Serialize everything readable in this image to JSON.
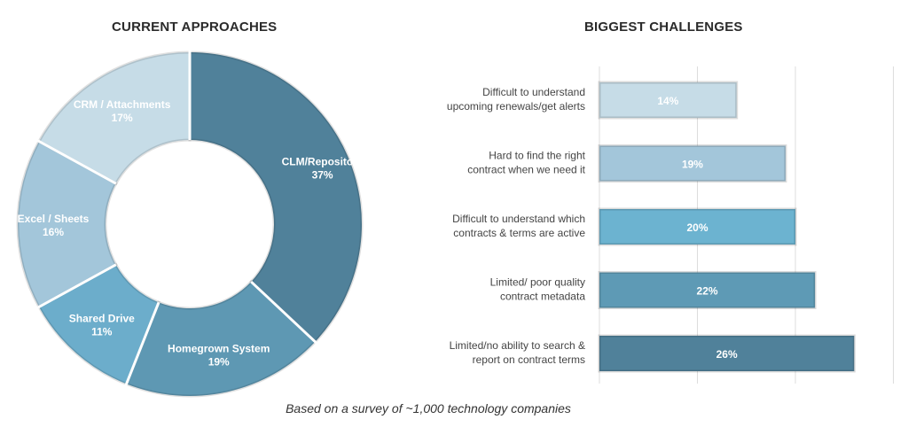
{
  "footnote": "Based on a survey of ~1,000 technology companies",
  "colors": {
    "slice_clm": "#50819a",
    "slice_homegrown": "#5e98b3",
    "slice_shared": "#6cadcb",
    "slice_excel": "#a3c6da",
    "slice_crm": "#c6dce7",
    "bar_renewals": "#c6dce7",
    "bar_find": "#a3c6da",
    "bar_active": "#6cb3d0",
    "bar_metadata": "#5e9ab5",
    "bar_search": "#50819a"
  },
  "chart_data": [
    {
      "type": "pie",
      "title": "CURRENT APPROACHES",
      "donut": true,
      "slices": [
        {
          "name": "CLM/Repository",
          "value": 37,
          "label": "37%"
        },
        {
          "name": "Homegrown System",
          "value": 19,
          "label": "19%"
        },
        {
          "name": "Shared Drive",
          "value": 11,
          "label": "11%"
        },
        {
          "name": "Excel / Sheets",
          "value": 16,
          "label": "16%"
        },
        {
          "name": "CRM / Attachments",
          "value": 17,
          "label": "17%"
        }
      ]
    },
    {
      "type": "bar",
      "orientation": "horizontal",
      "title": "BIGGEST CHALLENGES",
      "categories": [
        [
          "Difficult to understand",
          "upcoming renewals/get alerts"
        ],
        [
          "Hard to find the right",
          "contract when we need it"
        ],
        [
          "Difficult to understand which",
          "contracts & terms are active"
        ],
        [
          "Limited/ poor quality",
          "contract metadata"
        ],
        [
          "Limited/no ability to search &",
          "report on contract terms"
        ]
      ],
      "values": [
        14,
        19,
        20,
        22,
        26
      ],
      "value_labels": [
        "14%",
        "19%",
        "20%",
        "22%",
        "26%"
      ],
      "xlim": [
        0,
        30
      ],
      "grid": true
    }
  ]
}
